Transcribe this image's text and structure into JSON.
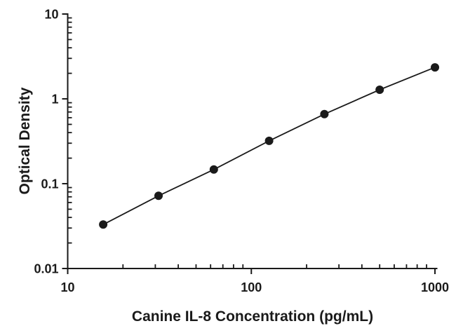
{
  "figure": {
    "background_color": "#ffffff",
    "ink_color": "#1a1a1a"
  },
  "chart_data": {
    "type": "line",
    "title": "",
    "xlabel": "Canine IL-8 Concentration (pg/mL)",
    "ylabel": "Optical Density",
    "x_scale": "log",
    "y_scale": "log",
    "xlim": [
      10,
      1000
    ],
    "ylim": [
      0.01,
      10
    ],
    "grid": false,
    "legend": "none",
    "x_ticks": [
      {
        "value": 10,
        "label": "10"
      },
      {
        "value": 100,
        "label": "100"
      },
      {
        "value": 1000,
        "label": "1000"
      }
    ],
    "y_ticks": [
      {
        "value": 10,
        "label": "10"
      },
      {
        "value": 1,
        "label": "1"
      },
      {
        "value": 0.1,
        "label": "0.1"
      },
      {
        "value": 0.01,
        "label": "0.01"
      }
    ],
    "minor_ticks": true,
    "series": [
      {
        "marker": "filled-circle",
        "color": "#1a1a1a",
        "points": [
          {
            "x": 15.6,
            "y": 0.033
          },
          {
            "x": 31.25,
            "y": 0.072
          },
          {
            "x": 62.5,
            "y": 0.147
          },
          {
            "x": 125,
            "y": 0.32
          },
          {
            "x": 250,
            "y": 0.66
          },
          {
            "x": 500,
            "y": 1.28
          },
          {
            "x": 1000,
            "y": 2.35
          }
        ]
      }
    ]
  }
}
